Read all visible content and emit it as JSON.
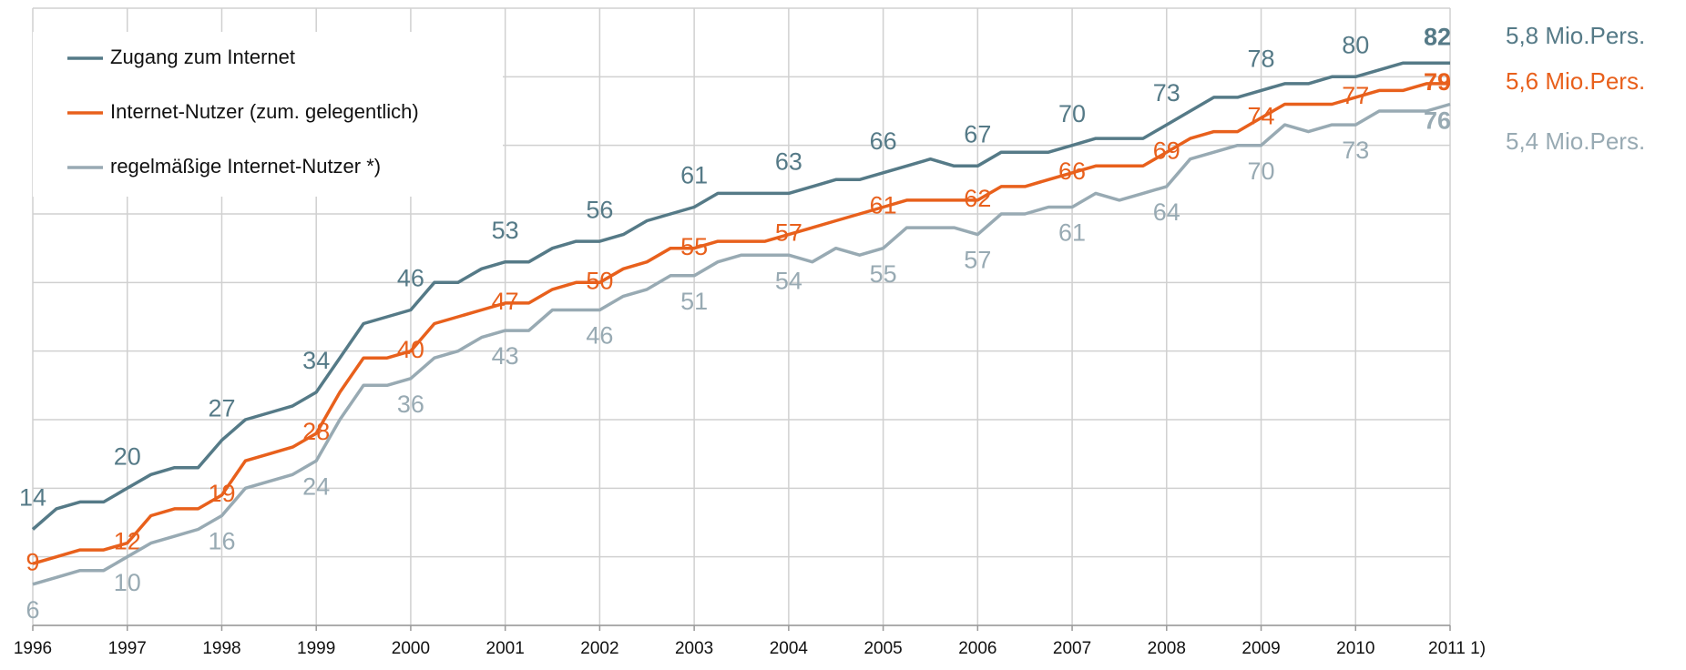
{
  "chart_data": {
    "type": "line",
    "x": [
      1996,
      1996.25,
      1996.5,
      1996.75,
      1997,
      1997.25,
      1997.5,
      1997.75,
      1998,
      1998.25,
      1998.5,
      1998.75,
      1999,
      1999.25,
      1999.5,
      1999.75,
      2000,
      2000.25,
      2000.5,
      2000.75,
      2001,
      2001.25,
      2001.5,
      2001.75,
      2002,
      2002.25,
      2002.5,
      2002.75,
      2003,
      2003.25,
      2003.5,
      2003.75,
      2004,
      2004.25,
      2004.5,
      2004.75,
      2005,
      2005.25,
      2005.5,
      2005.75,
      2006,
      2006.25,
      2006.5,
      2006.75,
      2007,
      2007.25,
      2007.5,
      2007.75,
      2008,
      2008.25,
      2008.5,
      2008.75,
      2009,
      2009.25,
      2009.5,
      2009.75,
      2010,
      2010.25,
      2010.5,
      2010.75,
      2011
    ],
    "series": [
      {
        "name": "Zugang zum Internet",
        "color": "#557a87",
        "total_label": "5,8 Mio.Pers.",
        "values": [
          14,
          17,
          18,
          18,
          20,
          22,
          23,
          23,
          27,
          30,
          31,
          32,
          34,
          39,
          44,
          45,
          46,
          50,
          50,
          52,
          53,
          53,
          55,
          56,
          56,
          57,
          59,
          60,
          61,
          63,
          63,
          63,
          63,
          64,
          65,
          65,
          66,
          67,
          68,
          67,
          67,
          69,
          69,
          69,
          70,
          71,
          71,
          71,
          73,
          75,
          77,
          77,
          78,
          79,
          79,
          80,
          80,
          81,
          82,
          82,
          82
        ]
      },
      {
        "name": "Internet-Nutzer (zum. gelegentlich)",
        "color": "#e8601c",
        "total_label": "5,6 Mio.Pers.",
        "values": [
          9,
          10,
          11,
          11,
          12,
          16,
          17,
          17,
          19,
          24,
          25,
          26,
          28,
          34,
          39,
          39,
          40,
          44,
          45,
          46,
          47,
          47,
          49,
          50,
          50,
          52,
          53,
          55,
          55,
          56,
          56,
          56,
          57,
          58,
          59,
          60,
          61,
          62,
          62,
          62,
          62,
          64,
          64,
          65,
          66,
          67,
          67,
          67,
          69,
          71,
          72,
          72,
          74,
          76,
          76,
          76,
          77,
          78,
          78,
          79,
          79
        ]
      },
      {
        "name": "regelmäßige Internet-Nutzer *)",
        "color": "#98aab3",
        "total_label": "5,4 Mio.Pers.",
        "values": [
          6,
          7,
          8,
          8,
          10,
          12,
          13,
          14,
          16,
          20,
          21,
          22,
          24,
          30,
          35,
          35,
          36,
          39,
          40,
          42,
          43,
          43,
          46,
          46,
          46,
          48,
          49,
          51,
          51,
          53,
          54,
          54,
          54,
          53,
          55,
          54,
          55,
          58,
          58,
          58,
          57,
          60,
          60,
          61,
          61,
          63,
          62,
          63,
          64,
          68,
          69,
          70,
          70,
          73,
          72,
          73,
          73,
          75,
          75,
          75,
          76
        ]
      }
    ],
    "xlim": [
      1996,
      2011
    ],
    "xticks": [
      1996,
      1997,
      1998,
      1999,
      2000,
      2001,
      2002,
      2003,
      2004,
      2005,
      2006,
      2007,
      2008,
      2009,
      2010,
      {
        "value": 2011,
        "label": "2011 1)"
      }
    ],
    "ylim": [
      0,
      90
    ],
    "yticks": [
      0,
      10,
      20,
      30,
      40,
      50,
      60,
      70,
      80,
      90
    ],
    "grid": true,
    "legend": "upper left"
  }
}
